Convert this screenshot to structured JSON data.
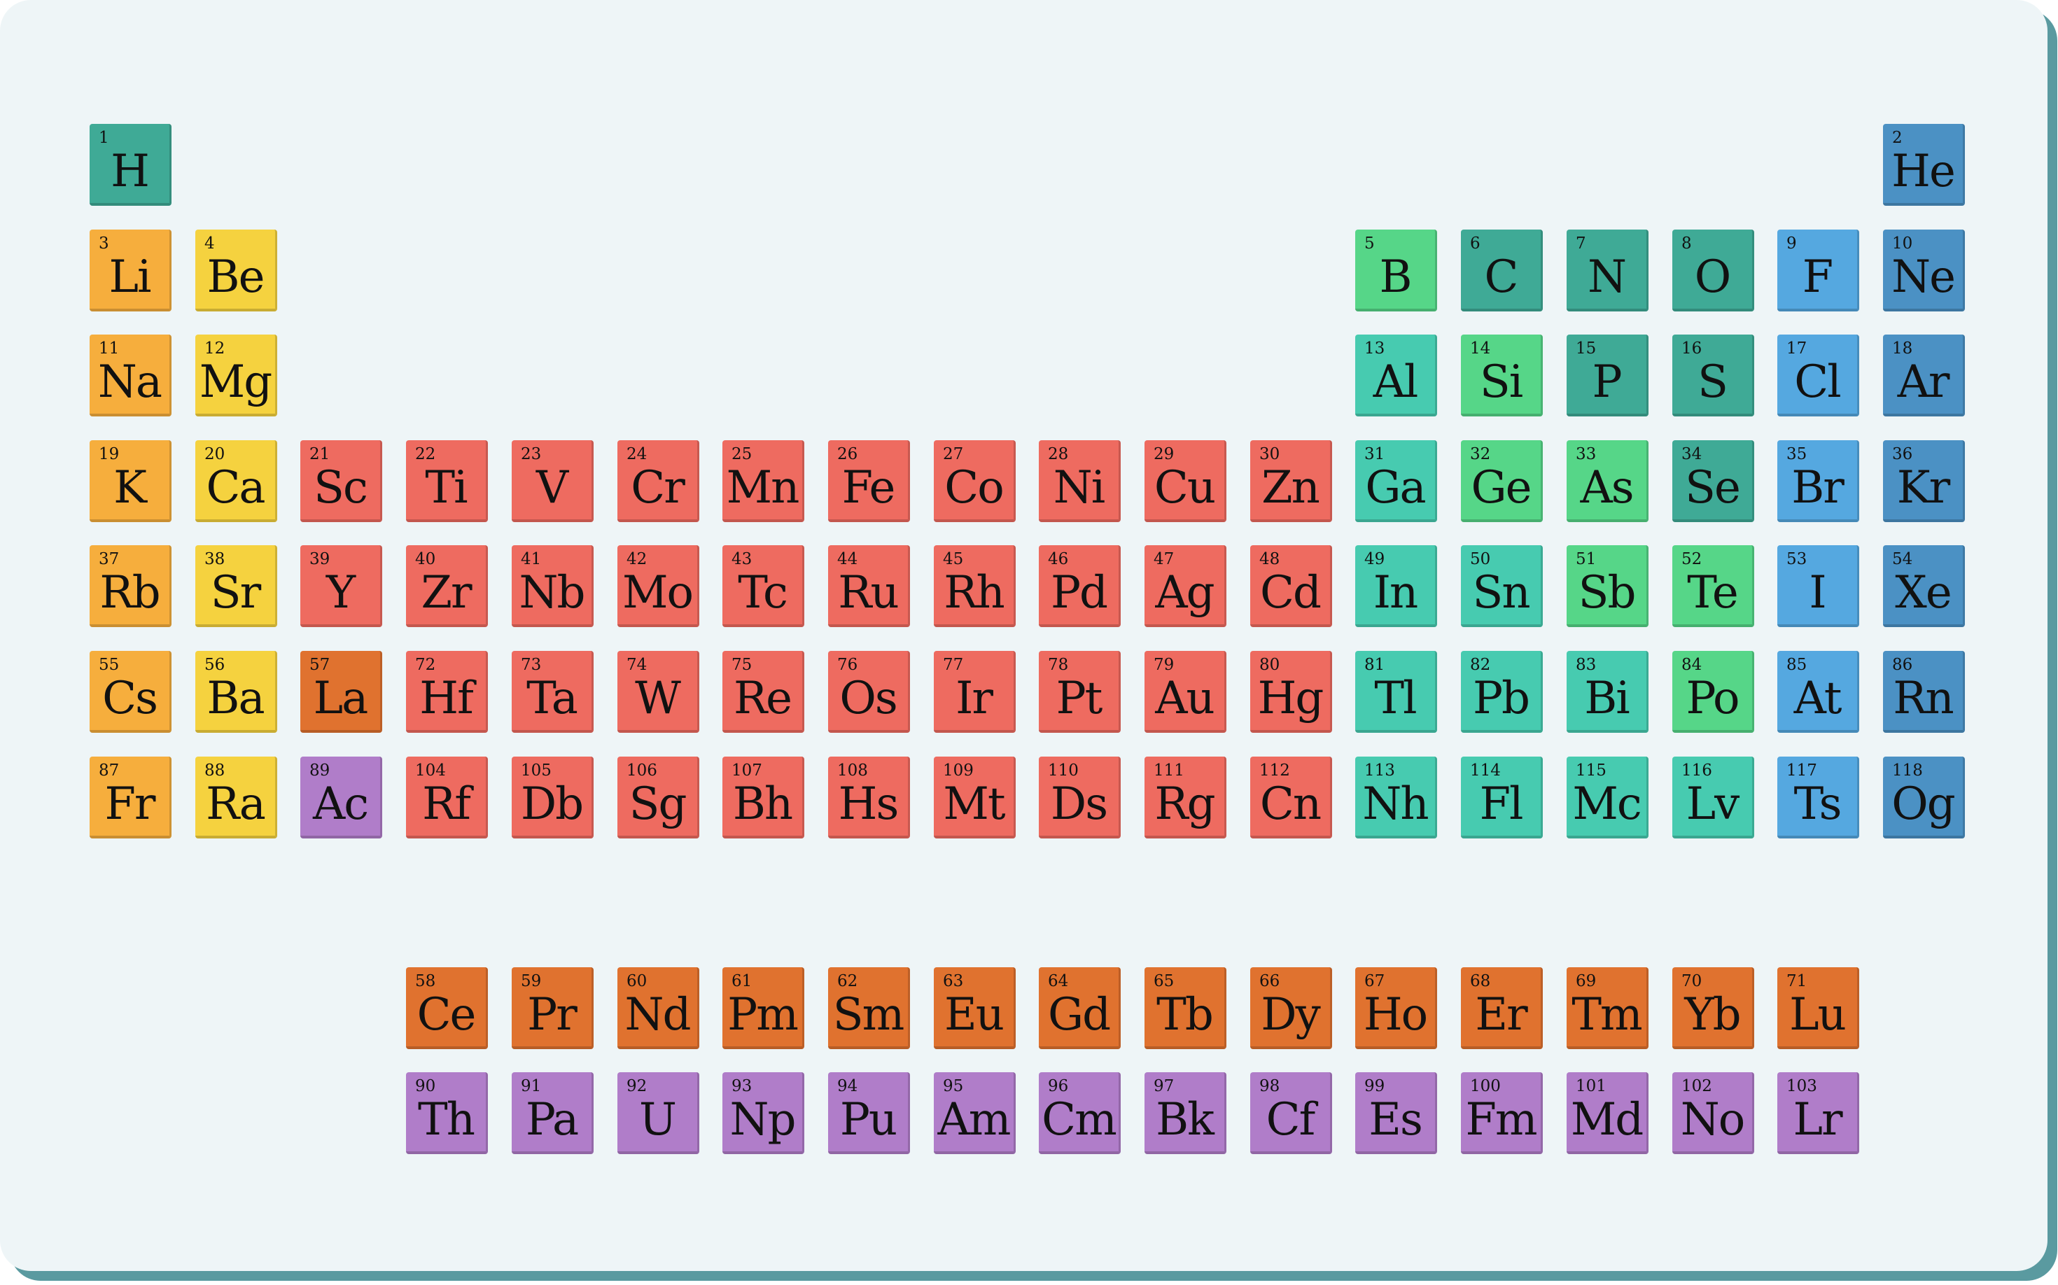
{
  "colors": {
    "background": "#eef5f7",
    "frame": "#5a9aa0",
    "categories": {
      "alkali": "#f6ae3d",
      "alkaline": "#f5d23f",
      "transition": "#ee6b60",
      "lanthanide": "#e0722f",
      "actinide": "#b07dc9",
      "post": "#47cbb0",
      "metalloid": "#56d688",
      "nonmetal": "#3faa96",
      "halogen": "#55a8e0",
      "noble": "#4b91c4"
    }
  },
  "elements": [
    {
      "n": "1",
      "s": "H",
      "c": "nonmetal",
      "row": 1,
      "col": 1
    },
    {
      "n": "2",
      "s": "He",
      "c": "noble",
      "row": 1,
      "col": 18
    },
    {
      "n": "3",
      "s": "Li",
      "c": "alkali",
      "row": 2,
      "col": 1
    },
    {
      "n": "4",
      "s": "Be",
      "c": "alkaline",
      "row": 2,
      "col": 2
    },
    {
      "n": "5",
      "s": "B",
      "c": "metalloid",
      "row": 2,
      "col": 13
    },
    {
      "n": "6",
      "s": "C",
      "c": "nonmetal",
      "row": 2,
      "col": 14
    },
    {
      "n": "7",
      "s": "N",
      "c": "nonmetal",
      "row": 2,
      "col": 15
    },
    {
      "n": "8",
      "s": "O",
      "c": "nonmetal",
      "row": 2,
      "col": 16
    },
    {
      "n": "9",
      "s": "F",
      "c": "halogen",
      "row": 2,
      "col": 17
    },
    {
      "n": "10",
      "s": "Ne",
      "c": "noble",
      "row": 2,
      "col": 18
    },
    {
      "n": "11",
      "s": "Na",
      "c": "alkali",
      "row": 3,
      "col": 1
    },
    {
      "n": "12",
      "s": "Mg",
      "c": "alkaline",
      "row": 3,
      "col": 2
    },
    {
      "n": "13",
      "s": "Al",
      "c": "post",
      "row": 3,
      "col": 13
    },
    {
      "n": "14",
      "s": "Si",
      "c": "metalloid",
      "row": 3,
      "col": 14
    },
    {
      "n": "15",
      "s": "P",
      "c": "nonmetal",
      "row": 3,
      "col": 15
    },
    {
      "n": "16",
      "s": "S",
      "c": "nonmetal",
      "row": 3,
      "col": 16
    },
    {
      "n": "17",
      "s": "Cl",
      "c": "halogen",
      "row": 3,
      "col": 17
    },
    {
      "n": "18",
      "s": "Ar",
      "c": "noble",
      "row": 3,
      "col": 18
    },
    {
      "n": "19",
      "s": "K",
      "c": "alkali",
      "row": 4,
      "col": 1
    },
    {
      "n": "20",
      "s": "Ca",
      "c": "alkaline",
      "row": 4,
      "col": 2
    },
    {
      "n": "21",
      "s": "Sc",
      "c": "transition",
      "row": 4,
      "col": 3
    },
    {
      "n": "22",
      "s": "Ti",
      "c": "transition",
      "row": 4,
      "col": 4
    },
    {
      "n": "23",
      "s": "V",
      "c": "transition",
      "row": 4,
      "col": 5
    },
    {
      "n": "24",
      "s": "Cr",
      "c": "transition",
      "row": 4,
      "col": 6
    },
    {
      "n": "25",
      "s": "Mn",
      "c": "transition",
      "row": 4,
      "col": 7
    },
    {
      "n": "26",
      "s": "Fe",
      "c": "transition",
      "row": 4,
      "col": 8
    },
    {
      "n": "27",
      "s": "Co",
      "c": "transition",
      "row": 4,
      "col": 9
    },
    {
      "n": "28",
      "s": "Ni",
      "c": "transition",
      "row": 4,
      "col": 10
    },
    {
      "n": "29",
      "s": "Cu",
      "c": "transition",
      "row": 4,
      "col": 11
    },
    {
      "n": "30",
      "s": "Zn",
      "c": "transition",
      "row": 4,
      "col": 12
    },
    {
      "n": "31",
      "s": "Ga",
      "c": "post",
      "row": 4,
      "col": 13
    },
    {
      "n": "32",
      "s": "Ge",
      "c": "metalloid",
      "row": 4,
      "col": 14
    },
    {
      "n": "33",
      "s": "As",
      "c": "metalloid",
      "row": 4,
      "col": 15
    },
    {
      "n": "34",
      "s": "Se",
      "c": "nonmetal",
      "row": 4,
      "col": 16
    },
    {
      "n": "35",
      "s": "Br",
      "c": "halogen",
      "row": 4,
      "col": 17
    },
    {
      "n": "36",
      "s": "Kr",
      "c": "noble",
      "row": 4,
      "col": 18
    },
    {
      "n": "37",
      "s": "Rb",
      "c": "alkali",
      "row": 5,
      "col": 1
    },
    {
      "n": "38",
      "s": "Sr",
      "c": "alkaline",
      "row": 5,
      "col": 2
    },
    {
      "n": "39",
      "s": "Y",
      "c": "transition",
      "row": 5,
      "col": 3
    },
    {
      "n": "40",
      "s": "Zr",
      "c": "transition",
      "row": 5,
      "col": 4
    },
    {
      "n": "41",
      "s": "Nb",
      "c": "transition",
      "row": 5,
      "col": 5
    },
    {
      "n": "42",
      "s": "Mo",
      "c": "transition",
      "row": 5,
      "col": 6
    },
    {
      "n": "43",
      "s": "Tc",
      "c": "transition",
      "row": 5,
      "col": 7
    },
    {
      "n": "44",
      "s": "Ru",
      "c": "transition",
      "row": 5,
      "col": 8
    },
    {
      "n": "45",
      "s": "Rh",
      "c": "transition",
      "row": 5,
      "col": 9
    },
    {
      "n": "46",
      "s": "Pd",
      "c": "transition",
      "row": 5,
      "col": 10
    },
    {
      "n": "47",
      "s": "Ag",
      "c": "transition",
      "row": 5,
      "col": 11
    },
    {
      "n": "48",
      "s": "Cd",
      "c": "transition",
      "row": 5,
      "col": 12
    },
    {
      "n": "49",
      "s": "In",
      "c": "post",
      "row": 5,
      "col": 13
    },
    {
      "n": "50",
      "s": "Sn",
      "c": "post",
      "row": 5,
      "col": 14
    },
    {
      "n": "51",
      "s": "Sb",
      "c": "metalloid",
      "row": 5,
      "col": 15
    },
    {
      "n": "52",
      "s": "Te",
      "c": "metalloid",
      "row": 5,
      "col": 16
    },
    {
      "n": "53",
      "s": "I",
      "c": "halogen",
      "row": 5,
      "col": 17
    },
    {
      "n": "54",
      "s": "Xe",
      "c": "noble",
      "row": 5,
      "col": 18
    },
    {
      "n": "55",
      "s": "Cs",
      "c": "alkali",
      "row": 6,
      "col": 1
    },
    {
      "n": "56",
      "s": "Ba",
      "c": "alkaline",
      "row": 6,
      "col": 2
    },
    {
      "n": "57",
      "s": "La",
      "c": "lanthanide",
      "row": 6,
      "col": 3
    },
    {
      "n": "72",
      "s": "Hf",
      "c": "transition",
      "row": 6,
      "col": 4
    },
    {
      "n": "73",
      "s": "Ta",
      "c": "transition",
      "row": 6,
      "col": 5
    },
    {
      "n": "74",
      "s": "W",
      "c": "transition",
      "row": 6,
      "col": 6
    },
    {
      "n": "75",
      "s": "Re",
      "c": "transition",
      "row": 6,
      "col": 7
    },
    {
      "n": "76",
      "s": "Os",
      "c": "transition",
      "row": 6,
      "col": 8
    },
    {
      "n": "77",
      "s": "Ir",
      "c": "transition",
      "row": 6,
      "col": 9
    },
    {
      "n": "78",
      "s": "Pt",
      "c": "transition",
      "row": 6,
      "col": 10
    },
    {
      "n": "79",
      "s": "Au",
      "c": "transition",
      "row": 6,
      "col": 11
    },
    {
      "n": "80",
      "s": "Hg",
      "c": "transition",
      "row": 6,
      "col": 12
    },
    {
      "n": "81",
      "s": "Tl",
      "c": "post",
      "row": 6,
      "col": 13
    },
    {
      "n": "82",
      "s": "Pb",
      "c": "post",
      "row": 6,
      "col": 14
    },
    {
      "n": "83",
      "s": "Bi",
      "c": "post",
      "row": 6,
      "col": 15
    },
    {
      "n": "84",
      "s": "Po",
      "c": "metalloid",
      "row": 6,
      "col": 16
    },
    {
      "n": "85",
      "s": "At",
      "c": "halogen",
      "row": 6,
      "col": 17
    },
    {
      "n": "86",
      "s": "Rn",
      "c": "noble",
      "row": 6,
      "col": 18
    },
    {
      "n": "87",
      "s": "Fr",
      "c": "alkali",
      "row": 7,
      "col": 1
    },
    {
      "n": "88",
      "s": "Ra",
      "c": "alkaline",
      "row": 7,
      "col": 2
    },
    {
      "n": "89",
      "s": "Ac",
      "c": "actinide",
      "row": 7,
      "col": 3
    },
    {
      "n": "104",
      "s": "Rf",
      "c": "transition",
      "row": 7,
      "col": 4
    },
    {
      "n": "105",
      "s": "Db",
      "c": "transition",
      "row": 7,
      "col": 5
    },
    {
      "n": "106",
      "s": "Sg",
      "c": "transition",
      "row": 7,
      "col": 6
    },
    {
      "n": "107",
      "s": "Bh",
      "c": "transition",
      "row": 7,
      "col": 7
    },
    {
      "n": "108",
      "s": "Hs",
      "c": "transition",
      "row": 7,
      "col": 8
    },
    {
      "n": "109",
      "s": "Mt",
      "c": "transition",
      "row": 7,
      "col": 9
    },
    {
      "n": "110",
      "s": "Ds",
      "c": "transition",
      "row": 7,
      "col": 10
    },
    {
      "n": "111",
      "s": "Rg",
      "c": "transition",
      "row": 7,
      "col": 11
    },
    {
      "n": "112",
      "s": "Cn",
      "c": "transition",
      "row": 7,
      "col": 12
    },
    {
      "n": "113",
      "s": "Nh",
      "c": "post",
      "row": 7,
      "col": 13
    },
    {
      "n": "114",
      "s": "Fl",
      "c": "post",
      "row": 7,
      "col": 14
    },
    {
      "n": "115",
      "s": "Mc",
      "c": "post",
      "row": 7,
      "col": 15
    },
    {
      "n": "116",
      "s": "Lv",
      "c": "post",
      "row": 7,
      "col": 16
    },
    {
      "n": "117",
      "s": "Ts",
      "c": "halogen",
      "row": 7,
      "col": 17
    },
    {
      "n": "118",
      "s": "Og",
      "c": "noble",
      "row": 7,
      "col": 18
    },
    {
      "n": "58",
      "s": "Ce",
      "c": "lanthanide",
      "row": 9,
      "col": 4
    },
    {
      "n": "59",
      "s": "Pr",
      "c": "lanthanide",
      "row": 9,
      "col": 5
    },
    {
      "n": "60",
      "s": "Nd",
      "c": "lanthanide",
      "row": 9,
      "col": 6
    },
    {
      "n": "61",
      "s": "Pm",
      "c": "lanthanide",
      "row": 9,
      "col": 7
    },
    {
      "n": "62",
      "s": "Sm",
      "c": "lanthanide",
      "row": 9,
      "col": 8
    },
    {
      "n": "63",
      "s": "Eu",
      "c": "lanthanide",
      "row": 9,
      "col": 9
    },
    {
      "n": "64",
      "s": "Gd",
      "c": "lanthanide",
      "row": 9,
      "col": 10
    },
    {
      "n": "65",
      "s": "Tb",
      "c": "lanthanide",
      "row": 9,
      "col": 11
    },
    {
      "n": "66",
      "s": "Dy",
      "c": "lanthanide",
      "row": 9,
      "col": 12
    },
    {
      "n": "67",
      "s": "Ho",
      "c": "lanthanide",
      "row": 9,
      "col": 13
    },
    {
      "n": "68",
      "s": "Er",
      "c": "lanthanide",
      "row": 9,
      "col": 14
    },
    {
      "n": "69",
      "s": "Tm",
      "c": "lanthanide",
      "row": 9,
      "col": 15
    },
    {
      "n": "70",
      "s": "Yb",
      "c": "lanthanide",
      "row": 9,
      "col": 16
    },
    {
      "n": "71",
      "s": "Lu",
      "c": "lanthanide",
      "row": 9,
      "col": 17
    },
    {
      "n": "90",
      "s": "Th",
      "c": "actinide",
      "row": 10,
      "col": 4
    },
    {
      "n": "91",
      "s": "Pa",
      "c": "actinide",
      "row": 10,
      "col": 5
    },
    {
      "n": "92",
      "s": "U",
      "c": "actinide",
      "row": 10,
      "col": 6
    },
    {
      "n": "93",
      "s": "Np",
      "c": "actinide",
      "row": 10,
      "col": 7
    },
    {
      "n": "94",
      "s": "Pu",
      "c": "actinide",
      "row": 10,
      "col": 8
    },
    {
      "n": "95",
      "s": "Am",
      "c": "actinide",
      "row": 10,
      "col": 9
    },
    {
      "n": "96",
      "s": "Cm",
      "c": "actinide",
      "row": 10,
      "col": 10
    },
    {
      "n": "97",
      "s": "Bk",
      "c": "actinide",
      "row": 10,
      "col": 11
    },
    {
      "n": "98",
      "s": "Cf",
      "c": "actinide",
      "row": 10,
      "col": 12
    },
    {
      "n": "99",
      "s": "Es",
      "c": "actinide",
      "row": 10,
      "col": 13
    },
    {
      "n": "100",
      "s": "Fm",
      "c": "actinide",
      "row": 10,
      "col": 14
    },
    {
      "n": "101",
      "s": "Md",
      "c": "actinide",
      "row": 10,
      "col": 15
    },
    {
      "n": "102",
      "s": "No",
      "c": "actinide",
      "row": 10,
      "col": 16
    },
    {
      "n": "103",
      "s": "Lr",
      "c": "actinide",
      "row": 10,
      "col": 17
    }
  ]
}
